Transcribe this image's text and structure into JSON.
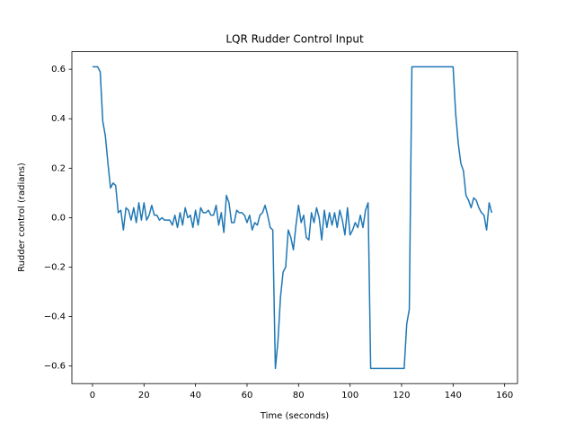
{
  "chart_data": {
    "type": "line",
    "title": "LQR Rudder Control Input",
    "xlabel": "Time (seconds)",
    "ylabel": "Rudder control (radians)",
    "color": "#1f77b4",
    "grid": false,
    "x": [
      0,
      1,
      2,
      3,
      4,
      5,
      6,
      7,
      8,
      9,
      10,
      11,
      12,
      13,
      14,
      15,
      16,
      17,
      18,
      19,
      20,
      21,
      22,
      23,
      24,
      25,
      26,
      27,
      28,
      29,
      30,
      31,
      32,
      33,
      34,
      35,
      36,
      37,
      38,
      39,
      40,
      41,
      42,
      43,
      44,
      45,
      46,
      47,
      48,
      49,
      50,
      51,
      52,
      53,
      54,
      55,
      56,
      57,
      58,
      59,
      60,
      61,
      62,
      63,
      64,
      65,
      66,
      67,
      68,
      69,
      70,
      71,
      72,
      73,
      74,
      75,
      76,
      77,
      78,
      79,
      80,
      81,
      82,
      83,
      84,
      85,
      86,
      87,
      88,
      89,
      90,
      91,
      92,
      93,
      94,
      95,
      96,
      97,
      98,
      99,
      100,
      101,
      102,
      103,
      104,
      105,
      106,
      107,
      108,
      109,
      110,
      111,
      112,
      113,
      114,
      115,
      116,
      117,
      118,
      119,
      120,
      121,
      122,
      123,
      124,
      125,
      126,
      127,
      128,
      129,
      130,
      131,
      132,
      133,
      134,
      135,
      136,
      137,
      138,
      139,
      140,
      141,
      142,
      143,
      144,
      145,
      146,
      147,
      148,
      149,
      150,
      151,
      152,
      153,
      154,
      155
    ],
    "values": [
      0.61,
      0.61,
      0.61,
      0.59,
      0.39,
      0.33,
      0.22,
      0.12,
      0.14,
      0.13,
      0.02,
      0.03,
      -0.05,
      0.04,
      0.03,
      -0.01,
      0.04,
      -0.02,
      0.06,
      -0.01,
      0.06,
      -0.01,
      0.01,
      0.05,
      0.01,
      0.01,
      -0.01,
      0.0,
      -0.01,
      -0.01,
      -0.01,
      -0.03,
      0.01,
      -0.04,
      0.02,
      -0.03,
      0.04,
      0.0,
      0.01,
      -0.04,
      0.03,
      -0.03,
      0.04,
      0.02,
      0.02,
      0.03,
      0.01,
      0.01,
      0.05,
      -0.03,
      0.02,
      -0.06,
      0.09,
      0.06,
      -0.02,
      -0.02,
      0.03,
      0.02,
      0.02,
      0.01,
      -0.02,
      0.01,
      -0.05,
      -0.02,
      -0.03,
      0.01,
      0.02,
      0.05,
      0.01,
      -0.04,
      -0.05,
      -0.61,
      -0.5,
      -0.32,
      -0.22,
      -0.2,
      -0.05,
      -0.08,
      -0.13,
      -0.03,
      0.05,
      -0.02,
      0.01,
      -0.08,
      -0.09,
      0.02,
      -0.02,
      0.04,
      0.0,
      -0.09,
      0.03,
      -0.04,
      0.02,
      -0.03,
      0.02,
      -0.04,
      0.03,
      -0.01,
      -0.07,
      0.04,
      -0.07,
      -0.05,
      -0.02,
      -0.04,
      0.01,
      -0.04,
      0.03,
      0.06,
      -0.61,
      -0.61,
      -0.61,
      -0.61,
      -0.61,
      -0.61,
      -0.61,
      -0.61,
      -0.61,
      -0.61,
      -0.61,
      -0.61,
      -0.61,
      -0.61,
      -0.43,
      -0.37,
      0.61,
      0.61,
      0.61,
      0.61,
      0.61,
      0.61,
      0.61,
      0.61,
      0.61,
      0.61,
      0.61,
      0.61,
      0.61,
      0.61,
      0.61,
      0.61,
      0.61,
      0.42,
      0.3,
      0.22,
      0.19,
      0.09,
      0.07,
      0.04,
      0.08,
      0.07,
      0.04,
      0.02,
      0.01,
      -0.05,
      0.06,
      0.02
    ],
    "xlim": [
      -8,
      165
    ],
    "ylim": [
      -0.671,
      0.671
    ],
    "xticks": [
      0,
      20,
      40,
      60,
      80,
      100,
      120,
      140,
      160
    ],
    "yticks": [
      {
        "value": -0.6,
        "label": "−0.6"
      },
      {
        "value": -0.4,
        "label": "−0.4"
      },
      {
        "value": -0.2,
        "label": "−0.2"
      },
      {
        "value": 0.0,
        "label": "0.0"
      },
      {
        "value": 0.2,
        "label": "0.2"
      },
      {
        "value": 0.4,
        "label": "0.4"
      },
      {
        "value": 0.6,
        "label": "0.6"
      }
    ]
  }
}
